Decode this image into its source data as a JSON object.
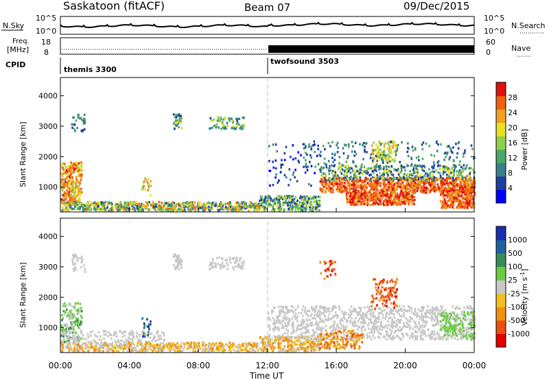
{
  "header": {
    "title": "Saskatoon (fitACF)",
    "beam": "Beam 07",
    "date": "09/Dec/2015"
  },
  "status_panels": {
    "nsky_label": "N.Sky",
    "nsearch_label": "N.Search",
    "freq_label_1": "Freq.",
    "freq_label_2": "[MHz]",
    "nave_label": "Nave",
    "cpid_label": "CPID",
    "noise_ticks_left": [
      "10^5",
      "10^0"
    ],
    "noise_ticks_right": [
      "10^5",
      "10^0"
    ],
    "freq_ticks": [
      "18",
      "8"
    ],
    "nave_ticks": [
      "60",
      "0"
    ]
  },
  "cpid": [
    {
      "name": "themis 3300",
      "start_hour": 0,
      "end_hour": 12
    },
    {
      "name": "twofsound 3503",
      "start_hour": 12,
      "end_hour": 24
    }
  ],
  "x_axis": {
    "label": "Time UT",
    "ticks": [
      "00:00",
      "04:00",
      "08:00",
      "12:00",
      "16:00",
      "20:00",
      "00:00"
    ],
    "range_hours": [
      0,
      24
    ]
  },
  "chart_data": [
    {
      "type": "heatmap",
      "name": "power",
      "ylabel": "Slant Range [km]",
      "yticks": [
        "1000",
        "2000",
        "3000",
        "4000"
      ],
      "ylim": [
        180,
        4600
      ],
      "colorbar_label": "Power [dB]",
      "colorbar_ticks": [
        "4",
        "8",
        "12",
        "16",
        "20",
        "24",
        "28"
      ],
      "colorbar_range": [
        0,
        30
      ],
      "colors": [
        "#0000ff",
        "#1e3f9e",
        "#3a7f8a",
        "#4aa86a",
        "#8fd04a",
        "#e8e020",
        "#f0a020",
        "#f06010",
        "#e01010"
      ]
    },
    {
      "type": "heatmap",
      "name": "velocity",
      "ylabel": "Slant Range [km]",
      "yticks": [
        "1000",
        "2000",
        "3000",
        "4000"
      ],
      "ylim": [
        180,
        4600
      ],
      "colorbar_label": "Velocity [m s^-1]",
      "colorbar_ticks": [
        "1000",
        "500",
        "100",
        "25",
        "-25",
        "-100",
        "-500",
        "-1000"
      ],
      "colors": [
        "#1a2fb0",
        "#2060a0",
        "#3a8a5a",
        "#6acc40",
        "#c8c8c8",
        "#f0c020",
        "#f09010",
        "#e85010",
        "#e00000"
      ]
    }
  ]
}
